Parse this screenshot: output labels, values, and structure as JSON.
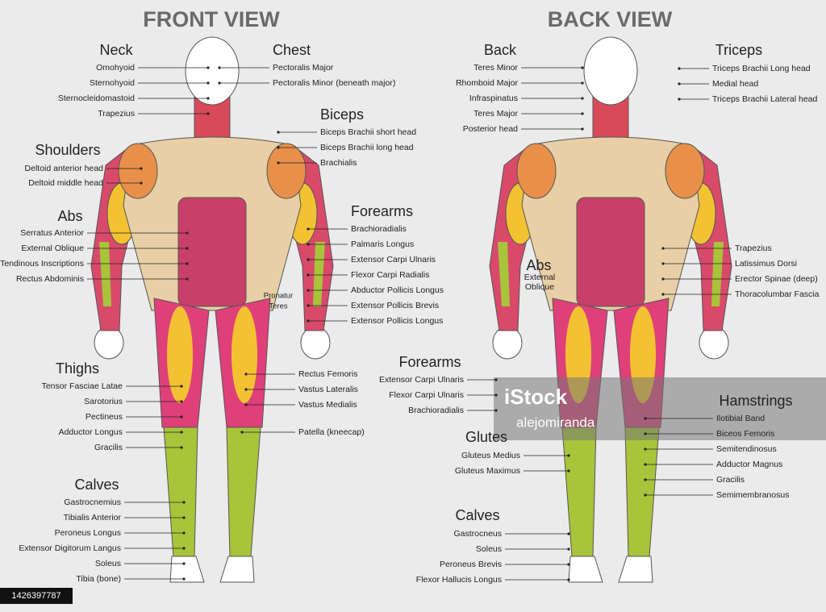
{
  "front_view": {
    "title": "FRONT VIEW",
    "groups": [
      {
        "heading": "Neck",
        "labels": [
          "Omohyoid",
          "Sternohyoid",
          "Sternocleidomastoid",
          "Trapezius"
        ]
      },
      {
        "heading": "Chest",
        "labels": [
          "Pectoralis Major",
          "Pectoralis Minor (beneath major)"
        ]
      },
      {
        "heading": "Shoulders",
        "labels": [
          "Deltoid anterior head",
          "Deltoid middle head"
        ]
      },
      {
        "heading": "Biceps",
        "labels": [
          "Biceps Brachii short head",
          "Biceps Brachii long head",
          "Brachialis"
        ]
      },
      {
        "heading": "Abs",
        "labels": [
          "Serratus Anterior",
          "External Oblique",
          "Tendinous Inscriptions",
          "Rectus Abdominis"
        ]
      },
      {
        "heading": "Forearms",
        "labels": [
          "Brachioradialis",
          "Palmaris Longus",
          "Extensor Carpi Ulnaris",
          "Flexor Carpi Radialis",
          "Abductor Pollicis Longus",
          "Extensor Pollicis Brevis",
          "Extensor Pollicis Longus"
        ]
      },
      {
        "heading": "Thighs",
        "labels": [
          "Tensor Fasciae Latae",
          "Sarotorius",
          "Pectineus",
          "Adductor Longus",
          "Gracilis",
          "Rectus Femoris",
          "Vastus Lateralis",
          "Vastus Medialis",
          "Patella (kneecap)"
        ]
      },
      {
        "heading": "Calves",
        "labels": [
          "Gastrocnemius",
          "Tibialis Anterior",
          "Peroneus Longus",
          "Extensor Digitorum Langus",
          "Soleus",
          "Tibia (bone)"
        ]
      }
    ],
    "pronator_label": [
      "Pronatur",
      "Teres"
    ]
  },
  "back_view": {
    "title": "BACK VIEW",
    "groups": [
      {
        "heading": "Back",
        "labels": [
          "Teres Minor",
          "Rhomboid Major",
          "Infraspinatus",
          "Teres Major",
          "Posterior head"
        ]
      },
      {
        "heading": "Triceps",
        "labels": [
          "Triceps Brachii Long head",
          "Medial head",
          "Triceps Brachii Lateral head"
        ]
      },
      {
        "heading": "Abs",
        "labels": [
          "External",
          "Oblique"
        ]
      },
      {
        "heading": "Forearms",
        "labels": [
          "Extensor Carpi Ulnaris",
          "Flexor Carpi Ulnaris",
          "Brachioradialis"
        ]
      },
      {
        "heading": "Glutes",
        "labels": [
          "Gluteus Medius",
          "Gluteus Maximus"
        ]
      },
      {
        "heading": "Calves",
        "labels": [
          "Gastrocneus",
          "Soleus",
          "Peroneus Brevis",
          "Flexor Hallucis Longus"
        ]
      },
      {
        "heading": "Hamstrings",
        "labels": [
          "Ilotibial Band",
          "Biceos Femoris",
          "Semitendinosus",
          "Adductor Magnus",
          "Gracilis",
          "Semimembranosus"
        ]
      }
    ],
    "unheaded_labels": [
      "Trapezius",
      "Latissimus Dorsi",
      "Erector Spinae (deep)",
      "Thoracolumbar Fascia"
    ]
  },
  "watermark": {
    "brand": "iStock",
    "credit": "alejomiranda"
  },
  "image_id": "1426397787"
}
